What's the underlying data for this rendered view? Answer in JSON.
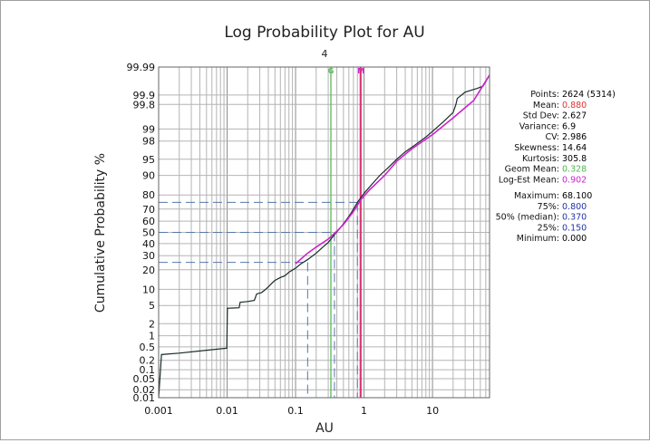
{
  "chart_data": {
    "type": "line",
    "title": "Log Probability Plot for AU",
    "subtitle": "4",
    "xlabel": "AU",
    "ylabel": "Cumulative Probability %",
    "xscale": "log",
    "yscale": "probability",
    "xlim": [
      0.001,
      68.1
    ],
    "ylim": [
      0.01,
      99.99
    ],
    "grid": true,
    "x_ticks": [
      {
        "value": 0.001,
        "label": "0.001"
      },
      {
        "value": 0.01,
        "label": "0.01"
      },
      {
        "value": 0.1,
        "label": "0.1"
      },
      {
        "value": 1,
        "label": "1"
      },
      {
        "value": 10,
        "label": "10"
      }
    ],
    "y_ticks": [
      {
        "value": 99.99,
        "label": "99.99"
      },
      {
        "value": 99.9,
        "label": "99.9"
      },
      {
        "value": 99.8,
        "label": "99.8"
      },
      {
        "value": 99,
        "label": "99"
      },
      {
        "value": 98,
        "label": "98"
      },
      {
        "value": 95,
        "label": "95"
      },
      {
        "value": 90,
        "label": "90"
      },
      {
        "value": 80,
        "label": "80"
      },
      {
        "value": 70,
        "label": "70"
      },
      {
        "value": 60,
        "label": "60"
      },
      {
        "value": 50,
        "label": "50"
      },
      {
        "value": 40,
        "label": "40"
      },
      {
        "value": 30,
        "label": "30"
      },
      {
        "value": 20,
        "label": "20"
      },
      {
        "value": 10,
        "label": "10"
      },
      {
        "value": 5,
        "label": "5"
      },
      {
        "value": 2,
        "label": "2"
      },
      {
        "value": 1,
        "label": "1"
      },
      {
        "value": 0.5,
        "label": "0.5"
      },
      {
        "value": 0.2,
        "label": "0.2"
      },
      {
        "value": 0.1,
        "label": "0.1"
      },
      {
        "value": 0.05,
        "label": "0.05"
      },
      {
        "value": 0.02,
        "label": "0.02"
      },
      {
        "value": 0.01,
        "label": "0.01"
      }
    ],
    "series": [
      {
        "color": "#1a2a2a",
        "points": [
          [
            0.001,
            0.01
          ],
          [
            0.0011,
            0.3
          ],
          [
            0.002,
            0.33
          ],
          [
            0.005,
            0.4
          ],
          [
            0.0099,
            0.46
          ],
          [
            0.0101,
            4.4
          ],
          [
            0.015,
            4.5
          ],
          [
            0.0155,
            5.8
          ],
          [
            0.02,
            6.0
          ],
          [
            0.025,
            6.3
          ],
          [
            0.027,
            8.3
          ],
          [
            0.032,
            8.8
          ],
          [
            0.035,
            9.6
          ],
          [
            0.04,
            11.0
          ],
          [
            0.045,
            12.6
          ],
          [
            0.05,
            14.0
          ],
          [
            0.06,
            15.5
          ],
          [
            0.07,
            16.5
          ],
          [
            0.08,
            18.5
          ],
          [
            0.1,
            21.0
          ],
          [
            0.12,
            24.0
          ],
          [
            0.15,
            27.0
          ],
          [
            0.2,
            32.0
          ],
          [
            0.25,
            37.0
          ],
          [
            0.3,
            41.0
          ],
          [
            0.37,
            48.0
          ],
          [
            0.45,
            54.0
          ],
          [
            0.55,
            61.0
          ],
          [
            0.65,
            67.0
          ],
          [
            0.8,
            75.0
          ],
          [
            1.0,
            81.0
          ],
          [
            1.3,
            86.0
          ],
          [
            1.7,
            90.0
          ],
          [
            2.2,
            92.5
          ],
          [
            3.0,
            95.0
          ],
          [
            4.0,
            96.5
          ],
          [
            5.5,
            97.5
          ],
          [
            8.0,
            98.4
          ],
          [
            11.0,
            99.0
          ],
          [
            15.0,
            99.4
          ],
          [
            20.0,
            99.65
          ],
          [
            22.0,
            99.8
          ],
          [
            23.0,
            99.87
          ],
          [
            30.0,
            99.92
          ],
          [
            45.0,
            99.94
          ],
          [
            55.0,
            99.95
          ],
          [
            68.1,
            99.98
          ]
        ]
      },
      {
        "color": "#cc22cc",
        "points": [
          [
            0.1,
            24.0
          ],
          [
            0.15,
            32.0
          ],
          [
            0.2,
            37.0
          ],
          [
            0.3,
            44.0
          ],
          [
            0.4,
            51.0
          ],
          [
            0.5,
            57.0
          ],
          [
            0.7,
            68.0
          ],
          [
            0.902,
            77.0
          ],
          [
            1.2,
            83.0
          ],
          [
            2.0,
            90.0
          ],
          [
            3.0,
            94.5
          ],
          [
            5.0,
            97.0
          ],
          [
            10.0,
            98.6
          ],
          [
            20.0,
            99.5
          ],
          [
            40.0,
            99.85
          ],
          [
            68.1,
            99.98
          ]
        ]
      }
    ],
    "reference_lines": [
      {
        "marker": "G",
        "value": 0.328,
        "color": "#5cb85c"
      },
      {
        "marker": "M",
        "value": 0.902,
        "color": "#cc22cc"
      },
      {
        "marker": "",
        "value": 0.88,
        "color": "#dd3366"
      }
    ],
    "percentile_guides": [
      {
        "p": 75,
        "value": 0.8
      },
      {
        "p": 50,
        "value": 0.37
      },
      {
        "p": 25,
        "value": 0.15
      }
    ]
  },
  "stats": [
    {
      "label": "Points:",
      "value": "2624 (5314)",
      "color": "#000000"
    },
    {
      "label": "Mean:",
      "value": "0.880",
      "color": "#e03030"
    },
    {
      "label": "Std Dev:",
      "value": "2.627",
      "color": "#000000"
    },
    {
      "label": "Variance:",
      "value": "6.9",
      "color": "#000000"
    },
    {
      "label": "CV:",
      "value": "2.986",
      "color": "#000000"
    },
    {
      "label": "Skewness:",
      "value": "14.64",
      "color": "#000000"
    },
    {
      "label": "Kurtosis:",
      "value": "305.8",
      "color": "#000000"
    },
    {
      "label": "Geom Mean:",
      "value": "0.328",
      "color": "#4cb84c"
    },
    {
      "label": "Log-Est Mean:",
      "value": "0.902",
      "color": "#cc22cc"
    }
  ],
  "stats2": [
    {
      "label": "Maximum:",
      "value": "68.100",
      "color": "#000000"
    },
    {
      "label": "75%:",
      "value": "0.800",
      "color": "#2233aa"
    },
    {
      "label": "50% (median):",
      "value": "0.370",
      "color": "#2233aa"
    },
    {
      "label": "25%:",
      "value": "0.150",
      "color": "#2233aa"
    },
    {
      "label": "Minimum:",
      "value": "0.000",
      "color": "#000000"
    }
  ]
}
